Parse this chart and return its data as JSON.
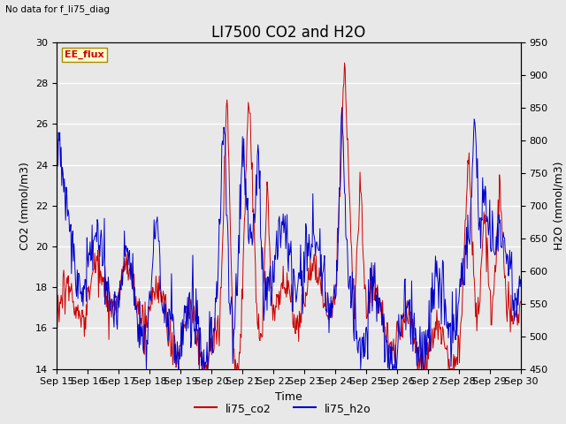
{
  "title": "LI7500 CO2 and H2O",
  "no_data_text": "No data for f_li75_diag",
  "legend_box_label": "EE_flux",
  "xlabel": "Time",
  "ylabel_left": "CO2 (mmol/m3)",
  "ylabel_right": "H2O (mmol/m3)",
  "ylim_left": [
    14,
    30
  ],
  "ylim_right": [
    450,
    950
  ],
  "yticks_left": [
    14,
    16,
    18,
    20,
    22,
    24,
    26,
    28,
    30
  ],
  "yticks_right": [
    450,
    500,
    550,
    600,
    650,
    700,
    750,
    800,
    850,
    900,
    950
  ],
  "xticklabels": [
    "Sep 15",
    "Sep 16",
    "Sep 17",
    "Sep 18",
    "Sep 19",
    "Sep 20",
    "Sep 21",
    "Sep 22",
    "Sep 23",
    "Sep 24",
    "Sep 25",
    "Sep 26",
    "Sep 27",
    "Sep 28",
    "Sep 29",
    "Sep 30"
  ],
  "co2_color": "#cc0000",
  "h2o_color": "#0000cc",
  "legend_line_co2": "li75_co2",
  "legend_line_h2o": "li75_h2o",
  "plot_bg_color": "#e8e8e8",
  "fig_bg_color": "#e8e8e8",
  "title_fontsize": 12,
  "label_fontsize": 9,
  "tick_fontsize": 8,
  "ee_flux_bg": "#ffffcc",
  "ee_flux_text_color": "#cc0000",
  "ee_flux_edge_color": "#aa8800"
}
